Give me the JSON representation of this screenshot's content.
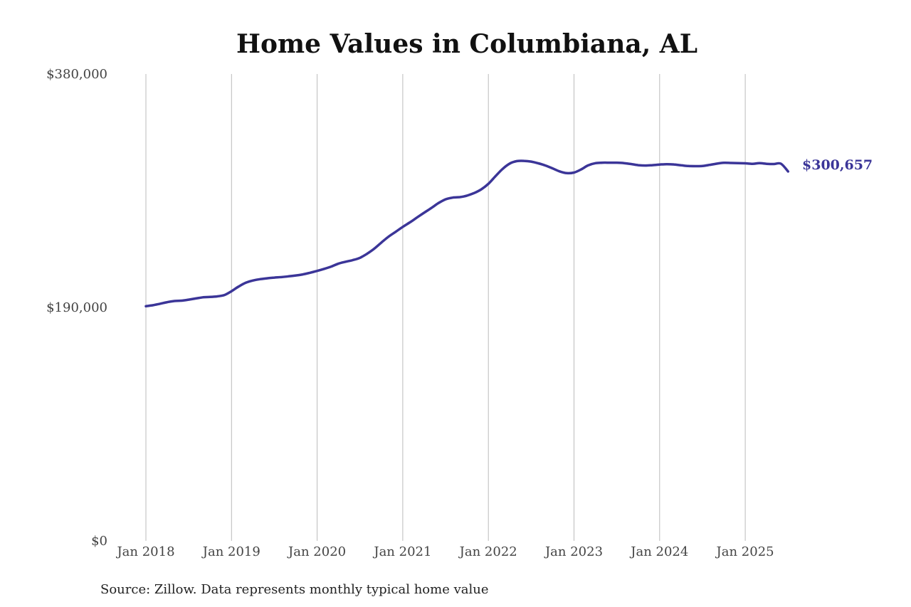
{
  "chart_data": {
    "type": "line",
    "title": "Home Values in Columbiana, AL",
    "xlabel": "",
    "ylabel": "",
    "ylim": [
      0,
      380000
    ],
    "xlim": [
      "2018-01",
      "2025-07"
    ],
    "y_ticks": [
      "$0",
      "$190,000",
      "$380,000"
    ],
    "y_tick_values": [
      0,
      190000,
      380000
    ],
    "x_ticks": [
      "Jan 2018",
      "Jan 2019",
      "Jan 2020",
      "Jan 2021",
      "Jan 2022",
      "Jan 2023",
      "Jan 2024",
      "Jan 2025"
    ],
    "x_tick_values": [
      "2018-01",
      "2019-01",
      "2020-01",
      "2021-01",
      "2022-01",
      "2023-01",
      "2024-01",
      "2025-01"
    ],
    "grid": "vertical",
    "color": "#3b3598",
    "end_label": "$300,657",
    "source": "Source: Zillow. Data represents monthly typical home value",
    "series": [
      {
        "x": [
          "2018-01",
          "2018-02",
          "2018-03",
          "2018-04",
          "2018-05",
          "2018-06",
          "2018-07",
          "2018-08",
          "2018-09",
          "2018-10",
          "2018-11",
          "2018-12",
          "2019-01",
          "2019-02",
          "2019-03",
          "2019-04",
          "2019-05",
          "2019-06",
          "2019-07",
          "2019-08",
          "2019-09",
          "2019-10",
          "2019-11",
          "2019-12",
          "2020-01",
          "2020-02",
          "2020-03",
          "2020-04",
          "2020-05",
          "2020-06",
          "2020-07",
          "2020-08",
          "2020-09",
          "2020-10",
          "2020-11",
          "2020-12",
          "2021-01",
          "2021-02",
          "2021-03",
          "2021-04",
          "2021-05",
          "2021-06",
          "2021-07",
          "2021-08",
          "2021-09",
          "2021-10",
          "2021-11",
          "2021-12",
          "2022-01",
          "2022-02",
          "2022-03",
          "2022-04",
          "2022-05",
          "2022-06",
          "2022-07",
          "2022-08",
          "2022-09",
          "2022-10",
          "2022-11",
          "2022-12",
          "2023-01",
          "2023-02",
          "2023-03",
          "2023-04",
          "2023-05",
          "2023-06",
          "2023-07",
          "2023-08",
          "2023-09",
          "2023-10",
          "2023-11",
          "2023-12",
          "2024-01",
          "2024-02",
          "2024-03",
          "2024-04",
          "2024-05",
          "2024-06",
          "2024-07",
          "2024-08",
          "2024-09",
          "2024-10",
          "2024-11",
          "2024-12",
          "2025-01",
          "2025-02",
          "2025-03",
          "2025-04",
          "2025-05",
          "2025-06",
          "2025-07"
        ],
        "y": [
          191000,
          191800,
          193000,
          194300,
          195200,
          195500,
          196300,
          197300,
          198200,
          198500,
          199000,
          200100,
          203200,
          207000,
          210100,
          211900,
          213000,
          213700,
          214300,
          214700,
          215300,
          216000,
          216900,
          218200,
          219700,
          221400,
          223300,
          225700,
          227200,
          228500,
          230400,
          233700,
          237800,
          242800,
          247600,
          251500,
          255600,
          259200,
          263200,
          267100,
          270900,
          274900,
          278000,
          279400,
          279800,
          281000,
          283100,
          286100,
          290600,
          296800,
          302800,
          307100,
          309100,
          309300,
          308700,
          307300,
          305500,
          303200,
          300700,
          299300,
          299800,
          302300,
          305700,
          307400,
          307800,
          307800,
          307800,
          307500,
          306700,
          305800,
          305500,
          305800,
          306300,
          306600,
          306400,
          305700,
          305100,
          305000,
          305100,
          306000,
          307000,
          307700,
          307600,
          307400,
          307300,
          306900,
          307400,
          306900,
          306700,
          307000,
          300657
        ]
      }
    ]
  }
}
